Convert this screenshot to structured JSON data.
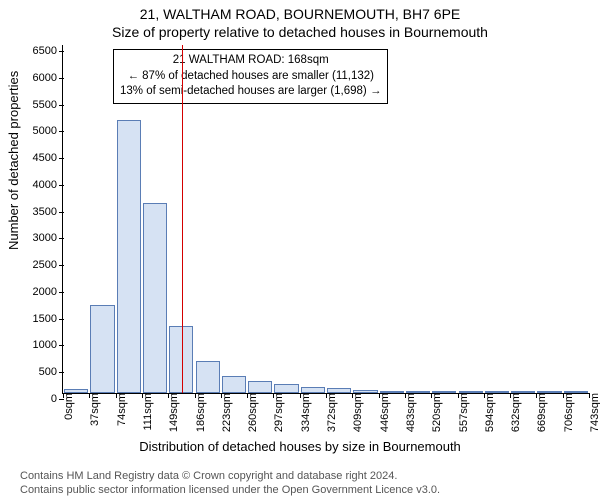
{
  "title": "21, WALTHAM ROAD, BOURNEMOUTH, BH7 6PE",
  "subtitle": "Size of property relative to detached houses in Bournemouth",
  "ylabel": "Number of detached properties",
  "xlabel": "Distribution of detached houses by size in Bournemouth",
  "footer1": "Contains HM Land Registry data © Crown copyright and database right 2024.",
  "footer2": "Contains public sector information licensed under the Open Government Licence v3.0.",
  "chart": {
    "type": "histogram",
    "ylim": [
      0,
      6500
    ],
    "yticks": [
      0,
      500,
      1000,
      1500,
      2000,
      2500,
      3000,
      3500,
      4000,
      4500,
      5000,
      5500,
      6000,
      6500
    ],
    "xtick_labels": [
      "0sqm",
      "37sqm",
      "74sqm",
      "111sqm",
      "149sqm",
      "186sqm",
      "223sqm",
      "260sqm",
      "297sqm",
      "334sqm",
      "372sqm",
      "409sqm",
      "446sqm",
      "483sqm",
      "520sqm",
      "557sqm",
      "594sqm",
      "632sqm",
      "669sqm",
      "706sqm",
      "743sqm"
    ],
    "xtick_count": 21,
    "bar_fill": "#d6e2f3",
    "bar_stroke": "#5a7db5",
    "background_color": "#ffffff",
    "values": [
      80,
      1650,
      5100,
      3550,
      1250,
      600,
      320,
      220,
      170,
      120,
      90,
      55,
      40,
      25,
      15,
      10,
      8,
      5,
      4,
      3
    ],
    "reference_line_value": 168,
    "reference_line_range": [
      0,
      743
    ],
    "reference_line_color": "#d40000",
    "annotation": {
      "line1": "21 WALTHAM ROAD: 168sqm",
      "line2": "← 87% of detached houses are smaller (11,132)",
      "line3": "13% of semi-detached houses are larger (1,698) →"
    }
  }
}
